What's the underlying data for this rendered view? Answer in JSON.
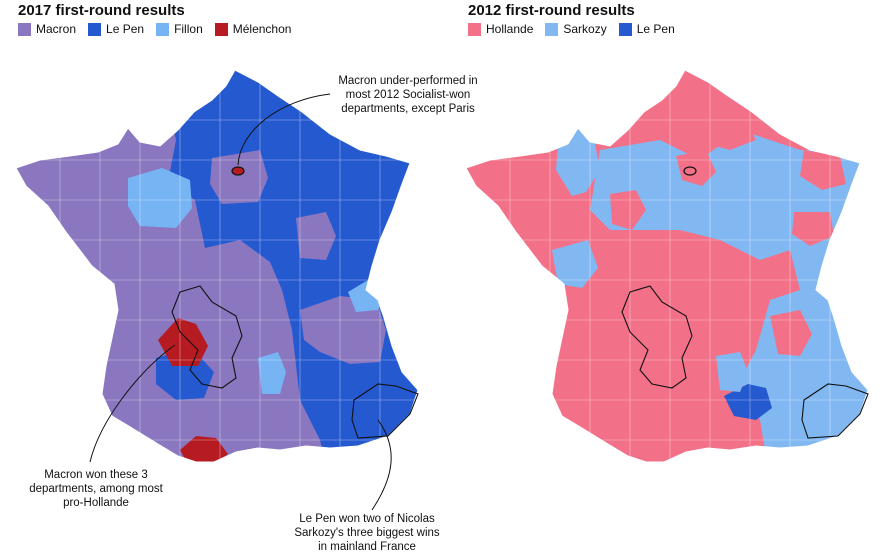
{
  "left_panel": {
    "title": "2017 first-round results",
    "legend": [
      {
        "label": "Macron",
        "color": "#8a77c0"
      },
      {
        "label": "Le Pen",
        "color": "#2459d0"
      },
      {
        "label": "Fillon",
        "color": "#76b4f4"
      },
      {
        "label": "Mélenchon",
        "color": "#b61b21"
      }
    ]
  },
  "right_panel": {
    "title": "2012 first-round results",
    "legend": [
      {
        "label": "Hollande",
        "color": "#f27188"
      },
      {
        "label": "Sarkozy",
        "color": "#81b8f2"
      },
      {
        "label": "Le Pen",
        "color": "#2459d0"
      }
    ]
  },
  "annotations": {
    "paris": "Macron under-performed in most 2012 Socialist-won departments, except Paris",
    "southwest": "Macron won these 3 departments, among most pro-Hollande",
    "southeast": "Le Pen won two of Nicolas Sarkozy's three biggest wins in mainland France"
  }
}
